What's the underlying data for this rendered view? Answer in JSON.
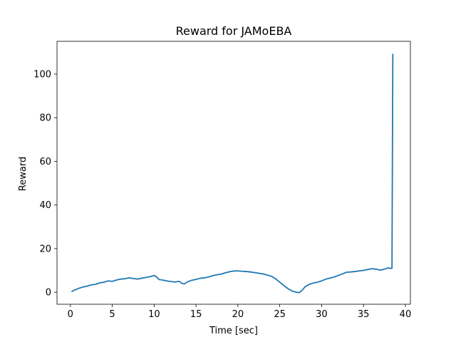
{
  "chart_data": {
    "type": "line",
    "title": "Reward for JAMoEBA",
    "xlabel": "Time [sec]",
    "ylabel": "Reward",
    "xlim": [
      -1.6,
      40.6
    ],
    "ylim": [
      -5.5,
      115
    ],
    "xticks": [
      0,
      5,
      10,
      15,
      20,
      25,
      30,
      35,
      40
    ],
    "yticks": [
      0,
      20,
      40,
      60,
      80,
      100
    ],
    "grid": false,
    "legend": "none",
    "series": [
      {
        "color": "#1f77b4",
        "x": [
          0.2,
          0.5,
          1.0,
          1.5,
          2.0,
          2.5,
          3.0,
          3.5,
          4.0,
          4.5,
          5.0,
          5.5,
          6.0,
          6.5,
          7.0,
          7.5,
          8.0,
          8.5,
          9.0,
          9.5,
          10.0,
          10.3,
          10.6,
          11.0,
          11.5,
          12.0,
          12.5,
          13.0,
          13.3,
          13.6,
          14.0,
          14.5,
          15.0,
          15.5,
          16.0,
          16.5,
          17.0,
          17.5,
          18.0,
          18.5,
          19.0,
          19.5,
          20.0,
          20.5,
          21.0,
          21.5,
          22.0,
          22.5,
          23.0,
          23.5,
          24.0,
          24.5,
          25.0,
          25.5,
          26.0,
          26.5,
          27.0,
          27.3,
          27.6,
          28.0,
          28.5,
          29.0,
          29.5,
          30.0,
          30.5,
          31.0,
          31.5,
          32.0,
          32.5,
          33.0,
          33.5,
          34.0,
          34.5,
          35.0,
          35.5,
          36.0,
          36.5,
          37.0,
          37.5,
          38.0,
          38.2,
          38.4,
          38.5
        ],
        "y": [
          0.4,
          1.0,
          1.8,
          2.4,
          2.8,
          3.4,
          3.6,
          4.3,
          4.6,
          5.2,
          5.0,
          5.6,
          6.0,
          6.2,
          6.6,
          6.3,
          6.0,
          6.4,
          6.8,
          7.1,
          7.7,
          7.0,
          5.8,
          5.6,
          5.2,
          4.9,
          4.7,
          5.0,
          4.1,
          3.8,
          4.8,
          5.5,
          5.9,
          6.4,
          6.6,
          7.0,
          7.6,
          8.0,
          8.3,
          8.9,
          9.4,
          9.7,
          9.8,
          9.6,
          9.5,
          9.3,
          9.0,
          8.7,
          8.4,
          7.9,
          7.3,
          6.2,
          4.6,
          3.0,
          1.6,
          0.5,
          0.0,
          -0.2,
          0.6,
          2.4,
          3.6,
          4.2,
          4.6,
          5.2,
          6.0,
          6.5,
          7.0,
          7.7,
          8.4,
          9.2,
          9.3,
          9.5,
          9.8,
          10.0,
          10.4,
          10.8,
          10.6,
          10.1,
          10.6,
          11.2,
          10.9,
          11.0,
          109.0
        ]
      }
    ]
  }
}
